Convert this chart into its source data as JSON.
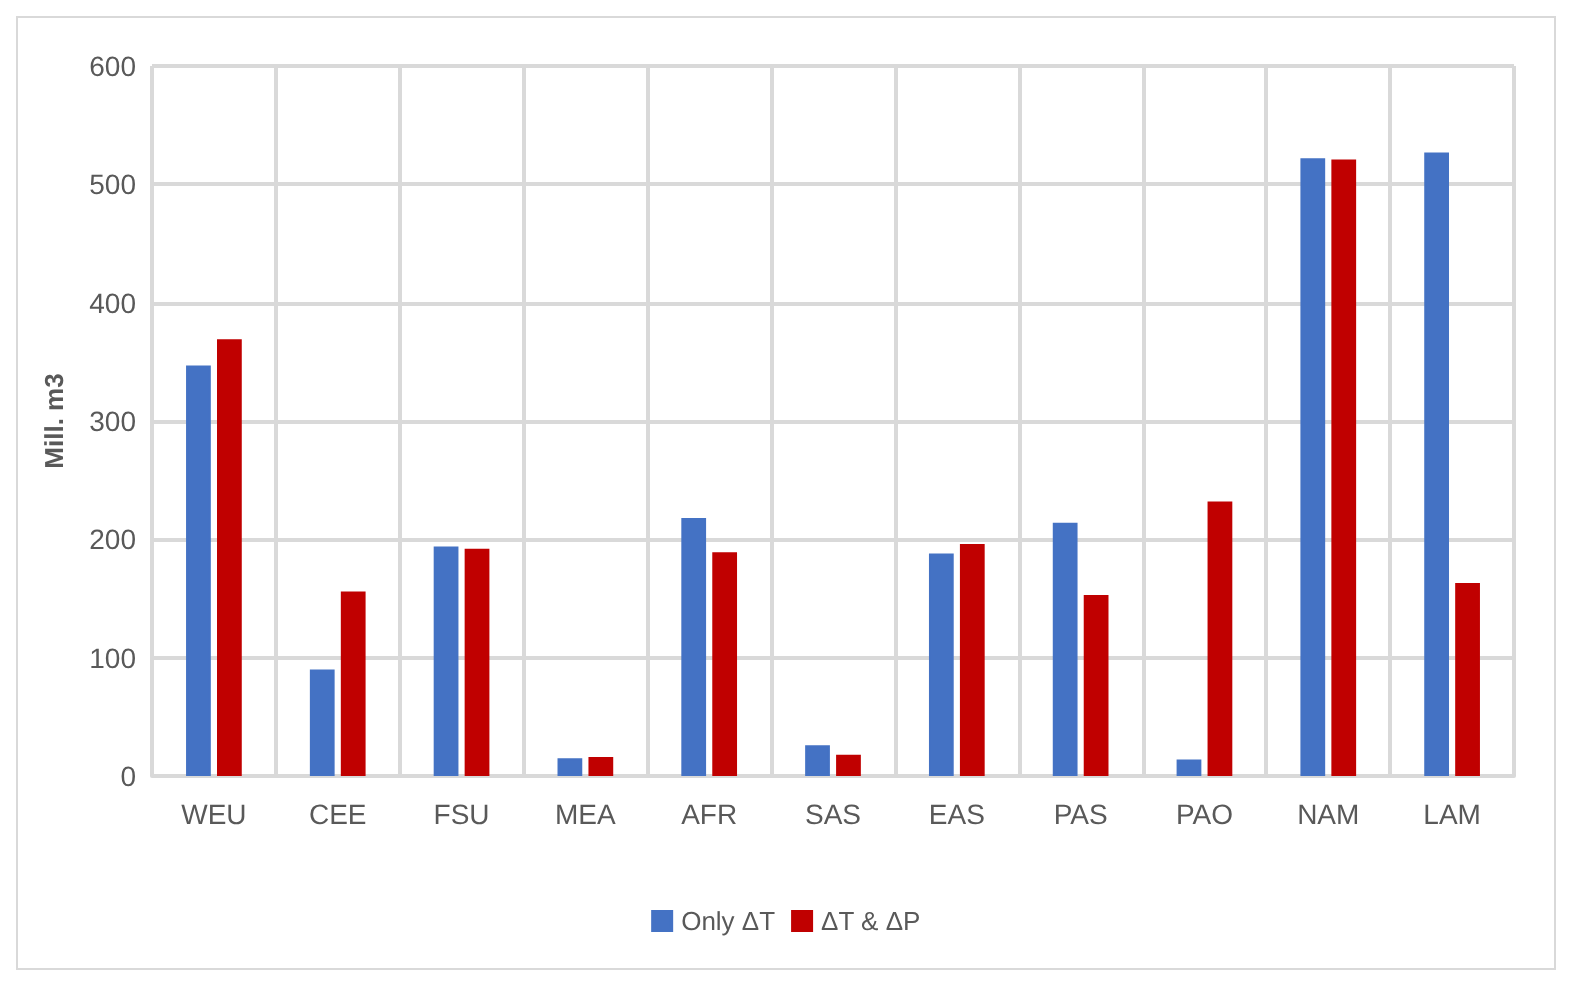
{
  "chart_data": {
    "type": "bar",
    "ylabel": "Mill. m3",
    "categories": [
      "WEU",
      "CEE",
      "FSU",
      "MEA",
      "AFR",
      "SAS",
      "EAS",
      "PAS",
      "PAO",
      "NAM",
      "LAM"
    ],
    "series": [
      {
        "name": "Only ΔT",
        "color": "#4472c4",
        "values": [
          347,
          90,
          194,
          15,
          218,
          26,
          188,
          214,
          14,
          522,
          527
        ]
      },
      {
        "name": "ΔT & ΔP",
        "color": "#c00000",
        "values": [
          369,
          156,
          192,
          16,
          189,
          18,
          196,
          153,
          232,
          521,
          163
        ]
      }
    ],
    "ylim": [
      0,
      600
    ],
    "yticks": [
      0,
      100,
      200,
      300,
      400,
      500,
      600
    ],
    "grid": true,
    "legend": "bottom"
  }
}
